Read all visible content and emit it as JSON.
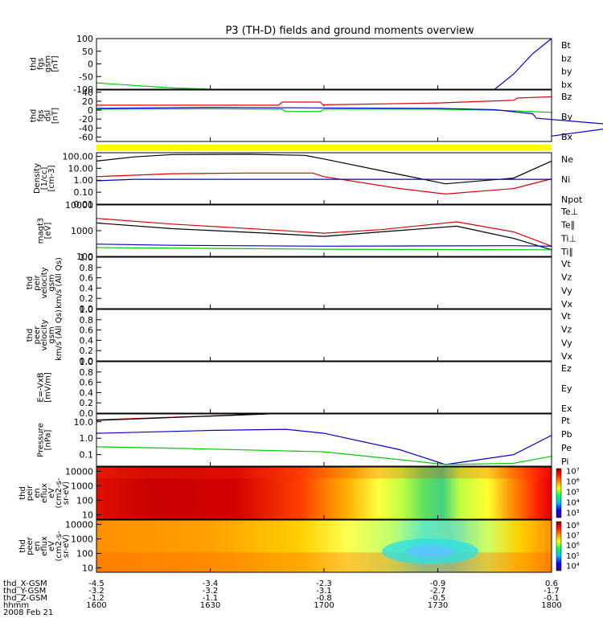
{
  "figure": {
    "title": "P3 (TH-D) fields and ground moments overview",
    "ephemeris_rows": [
      {
        "label": "thd_X-GSM",
        "values": [
          "-4.5",
          "-3.4",
          "-2.3",
          "-0.9",
          "0.6"
        ]
      },
      {
        "label": "thd_Y-GSM",
        "values": [
          "-3.2",
          "-3.2",
          "-3.1",
          "-2.7",
          "-1.7"
        ]
      },
      {
        "label": "thd_Z-GSM",
        "values": [
          "-1.2",
          "-1.1",
          "-0.8",
          "-0.5",
          "-0.1"
        ]
      },
      {
        "label": "hhmm",
        "values": [
          "1600",
          "1630",
          "1700",
          "1730",
          "1800"
        ]
      }
    ],
    "date": "2008 Feb 21"
  },
  "colors": {
    "black": "#000000",
    "red": "#dd0000",
    "green": "#00cc00",
    "blue": "#0000cc",
    "yellow": "#ffff00"
  },
  "chart_data": [
    {
      "id": "fgs_gsm",
      "type": "line",
      "ylabel_lines": [
        "thd",
        "fgs",
        "gsm",
        "[nT]"
      ],
      "yticks": [
        "100",
        "50",
        "0",
        "-50",
        "-100"
      ],
      "ylim": [
        -100,
        100
      ],
      "legend": [
        {
          "text": "Bt",
          "color": "#000000"
        },
        {
          "text": "bz",
          "color": "#dd0000"
        },
        {
          "text": "by",
          "color": "#00cc00"
        },
        {
          "text": "bx",
          "color": "#0000cc"
        }
      ],
      "series": [
        {
          "name": "by",
          "color": "#00cc00",
          "x": [
            1600,
            1610,
            1620,
            1630
          ],
          "y": [
            -75,
            -85,
            -95,
            -100
          ]
        },
        {
          "name": "bx",
          "color": "#0000cc",
          "x": [
            1745,
            1750,
            1755,
            1760
          ],
          "y": [
            -100,
            -40,
            40,
            100
          ]
        }
      ]
    },
    {
      "id": "fgs_dsl",
      "type": "line",
      "ylabel_lines": [
        "thd",
        "fgs",
        "dsl",
        "[nT]"
      ],
      "yticks": [
        "40",
        "20",
        "0",
        "-20",
        "-40",
        "-60"
      ],
      "ylim": [
        -70,
        45
      ],
      "legend": [
        {
          "text": "Bz",
          "color": "#dd0000"
        },
        {
          "text": "By",
          "color": "#00cc00"
        },
        {
          "text": "Bx",
          "color": "#0000cc"
        }
      ],
      "series": [
        {
          "name": "Bz",
          "color": "#dd0000",
          "x": [
            1600,
            1630,
            1648,
            1649,
            1659,
            1660,
            1700,
            1730,
            1750,
            1751,
            1800
          ],
          "y": [
            11,
            11,
            11,
            18,
            18,
            10,
            12,
            16,
            22,
            27,
            30
          ]
        },
        {
          "name": "By",
          "color": "#00cc00",
          "x": [
            1600,
            1630,
            1649,
            1650,
            1659,
            1700,
            1730,
            1745,
            1760,
            1800
          ],
          "y": [
            2,
            3,
            2,
            -3,
            -3,
            2,
            2,
            0,
            -5,
            -10
          ]
        },
        {
          "name": "Bx",
          "color": "#0000cc",
          "x": [
            1600,
            1630,
            1700,
            1730,
            1745,
            1755,
            1756,
            1780,
            1800
          ],
          "y": [
            4,
            6,
            5,
            4,
            1,
            -8,
            -18,
            -35,
            -58
          ]
        }
      ]
    },
    {
      "id": "density",
      "type": "line",
      "ylabel_lines": [
        "Density",
        "[1/cc]",
        "[cm-3]"
      ],
      "yticks": [
        "100.00",
        "10.00",
        "1.00",
        "0.10",
        "0.01"
      ],
      "ylog": true,
      "ylim": [
        0.01,
        200
      ],
      "legend": [
        {
          "text": "Ne",
          "color": "#dd0000"
        },
        {
          "text": "Ni",
          "color": "#000000"
        },
        {
          "text": "Npot",
          "color": "#0000cc"
        }
      ],
      "series": [
        {
          "name": "Ni",
          "color": "#000000",
          "x": [
            1600,
            1610,
            1620,
            1640,
            1655,
            1700,
            1720,
            1732,
            1750,
            1800
          ],
          "y": [
            40,
            90,
            140,
            150,
            120,
            60,
            3,
            0.5,
            1.5,
            40
          ]
        },
        {
          "name": "Ne",
          "color": "#dd0000",
          "x": [
            1600,
            1620,
            1640,
            1657,
            1700,
            1720,
            1732,
            1750,
            1800
          ],
          "y": [
            2,
            3.5,
            4,
            4,
            2,
            0.2,
            0.07,
            0.2,
            1.3
          ]
        },
        {
          "name": "Npot",
          "color": "#0000cc",
          "x": [
            1600,
            1610,
            1700,
            1800
          ],
          "y": [
            0.9,
            1.2,
            1.2,
            1.2
          ]
        }
      ]
    },
    {
      "id": "temperature",
      "type": "line",
      "ylabel_lines": [
        "magt3",
        "[eV]"
      ],
      "yticks": [
        "10000",
        "1000",
        "100"
      ],
      "ylog": true,
      "ylim": [
        100,
        10000
      ],
      "legend": [
        {
          "text": "Te⊥",
          "color": "#dd0000"
        },
        {
          "text": "Te∥",
          "color": "#000000"
        },
        {
          "text": "Ti⊥",
          "color": "#0000cc"
        },
        {
          "text": "Ti∥",
          "color": "#00cc00"
        }
      ],
      "series": [
        {
          "name": "Te⊥",
          "color": "#dd0000",
          "x": [
            1600,
            1620,
            1645,
            1700,
            1715,
            1735,
            1750,
            1800
          ],
          "y": [
            3000,
            1800,
            1100,
            800,
            1100,
            2200,
            900,
            250
          ]
        },
        {
          "name": "Te∥",
          "color": "#000000",
          "x": [
            1600,
            1620,
            1645,
            1700,
            1715,
            1735,
            1750,
            1800
          ],
          "y": [
            2000,
            1200,
            800,
            600,
            900,
            1500,
            500,
            180
          ]
        },
        {
          "name": "Ti⊥",
          "color": "#0000cc",
          "x": [
            1600,
            1620,
            1700,
            1750,
            1800
          ],
          "y": [
            300,
            270,
            250,
            260,
            250
          ]
        },
        {
          "name": "Ti∥",
          "color": "#00cc00",
          "x": [
            1600,
            1640,
            1700,
            1800
          ],
          "y": [
            220,
            200,
            190,
            180
          ]
        }
      ]
    },
    {
      "id": "peir_velocity",
      "type": "line",
      "ylabel_lines": [
        "thd",
        "peir",
        "velocity",
        "gsm",
        "km/s (All Qs)"
      ],
      "yticks": [
        "1.0",
        "0.8",
        "0.6",
        "0.4",
        "0.2",
        "0.0"
      ],
      "ylim": [
        0,
        1
      ],
      "legend": [
        {
          "text": "Vt",
          "color": "#000000"
        },
        {
          "text": "Vz",
          "color": "#dd0000"
        },
        {
          "text": "Vy",
          "color": "#00cc00"
        },
        {
          "text": "Vx",
          "color": "#0000cc"
        }
      ],
      "series": []
    },
    {
      "id": "peer_velocity",
      "type": "line",
      "ylabel_lines": [
        "thd",
        "peer",
        "velocity",
        "gsm",
        "km/s (All Qs)"
      ],
      "yticks": [
        "1.0",
        "0.8",
        "0.6",
        "0.4",
        "0.2",
        "0.0"
      ],
      "ylim": [
        0,
        1
      ],
      "legend": [
        {
          "text": "Vt",
          "color": "#000000"
        },
        {
          "text": "Vz",
          "color": "#dd0000"
        },
        {
          "text": "Vy",
          "color": "#00cc00"
        },
        {
          "text": "Vx",
          "color": "#0000cc"
        }
      ],
      "series": []
    },
    {
      "id": "efield",
      "type": "line",
      "ylabel_lines": [
        "E=-VxB",
        "[mV/m]"
      ],
      "yticks": [
        "1.0",
        "0.8",
        "0.6",
        "0.4",
        "0.2",
        "0.0"
      ],
      "ylim": [
        0,
        1
      ],
      "legend": [
        {
          "text": "Ez",
          "color": "#dd0000"
        },
        {
          "text": "Ey",
          "color": "#00cc00"
        },
        {
          "text": "Ex",
          "color": "#0000cc"
        }
      ],
      "series": []
    },
    {
      "id": "pressure",
      "type": "line",
      "ylabel_lines": [
        "Pressure",
        "[nPa]"
      ],
      "yticks": [
        "10.0",
        "1.0",
        "0.1"
      ],
      "ylog": true,
      "ylim": [
        0.02,
        30
      ],
      "legend": [
        {
          "text": "Pt",
          "color": "#000000"
        },
        {
          "text": "Pb",
          "color": "#dd0000"
        },
        {
          "text": "Pe",
          "color": "#00cc00"
        },
        {
          "text": "Pi",
          "color": "#0000cc"
        }
      ],
      "series": [
        {
          "name": "Pb",
          "color": "#dd0000",
          "x": [
            1600,
            1645
          ],
          "y": [
            13,
            30
          ]
        },
        {
          "name": "Pt",
          "color": "#000000",
          "x": [
            1600,
            1645
          ],
          "y": [
            12,
            30
          ]
        },
        {
          "name": "Pi",
          "color": "#0000cc",
          "x": [
            1600,
            1630,
            1650,
            1700,
            1720,
            1732,
            1750,
            1800
          ],
          "y": [
            2,
            3,
            3.5,
            2,
            0.2,
            0.025,
            0.1,
            1.5
          ]
        },
        {
          "name": "Pe",
          "color": "#00cc00",
          "x": [
            1600,
            1620,
            1700,
            1720,
            1732,
            1750,
            1800
          ],
          "y": [
            0.3,
            0.25,
            0.15,
            0.05,
            0.025,
            0.03,
            0.08
          ]
        }
      ]
    },
    {
      "id": "peir_spectrogram",
      "type": "heatmap",
      "ylabel_lines": [
        "thd",
        "peir",
        "en",
        "eflux",
        "eV",
        "(cm2-s-",
        "sr-eV)"
      ],
      "yticks": [
        "10000",
        "1000",
        "100",
        "10"
      ],
      "ylog": true,
      "ylim": [
        5,
        20000
      ],
      "colorbar_ticks": [
        "10⁷",
        "10⁶",
        "10⁵",
        "10⁴",
        "10³"
      ],
      "colorbar_range": [
        2.5,
        7.2
      ]
    },
    {
      "id": "peer_spectrogram",
      "type": "heatmap",
      "ylabel_lines": [
        "thd",
        "peer",
        "en",
        "eflux",
        "eV",
        "(cm2-s-",
        "sr-eV)"
      ],
      "yticks": [
        "10000",
        "1000",
        "100",
        "10"
      ],
      "ylog": true,
      "ylim": [
        5,
        20000
      ],
      "colorbar_ticks": [
        "10⁸",
        "10⁷",
        "10⁶",
        "10⁵",
        "10⁴"
      ],
      "colorbar_range": [
        3.5,
        8.3
      ]
    },
    {
      "id": "time_axis",
      "type": "axis",
      "x": [
        1600,
        1630,
        1700,
        1730,
        1800
      ],
      "xlim": [
        1600,
        1800
      ]
    }
  ]
}
